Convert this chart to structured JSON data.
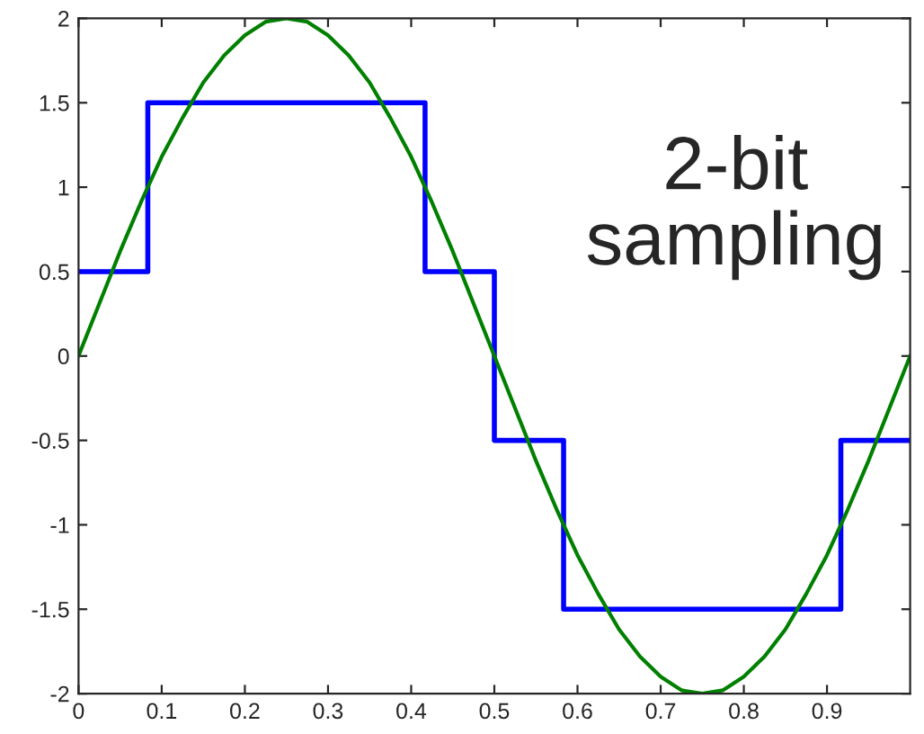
{
  "chart_data": {
    "type": "line",
    "xlim": [
      0,
      1
    ],
    "ylim": [
      -2,
      2
    ],
    "xticks": [
      0,
      0.1,
      0.2,
      0.3,
      0.4,
      0.5,
      0.6,
      0.7,
      0.8,
      0.9
    ],
    "yticks": [
      -2,
      -1.5,
      -1,
      -0.5,
      0,
      0.5,
      1,
      1.5,
      2
    ],
    "grid": false,
    "marker": "none",
    "line_style": "solid",
    "annotations": [
      "2-bit\nsampling"
    ],
    "series": [
      {
        "type": "step",
        "color": "#0000ff",
        "x": [
          0,
          0.0833,
          0.4167,
          0.5,
          0.5833,
          0.9167,
          1
        ],
        "values": [
          0.5,
          1.5,
          0.5,
          -0.5,
          -1.5,
          -0.5,
          -0.5
        ]
      },
      {
        "color": "#008000",
        "x": [
          0,
          0.025,
          0.05,
          0.075,
          0.1,
          0.125,
          0.15,
          0.175,
          0.2,
          0.225,
          0.25,
          0.275,
          0.3,
          0.325,
          0.35,
          0.375,
          0.4,
          0.425,
          0.45,
          0.475,
          0.5,
          0.525,
          0.55,
          0.575,
          0.6,
          0.625,
          0.65,
          0.675,
          0.7,
          0.725,
          0.75,
          0.775,
          0.8,
          0.825,
          0.85,
          0.875,
          0.9,
          0.925,
          0.95,
          0.975,
          1
        ],
        "values": [
          0,
          0.31,
          0.62,
          0.91,
          1.18,
          1.41,
          1.62,
          1.78,
          1.9,
          1.98,
          2,
          1.98,
          1.9,
          1.78,
          1.62,
          1.41,
          1.18,
          0.91,
          0.62,
          0.31,
          0,
          -0.31,
          -0.62,
          -0.91,
          -1.18,
          -1.41,
          -1.62,
          -1.78,
          -1.9,
          -1.98,
          -2,
          -1.98,
          -1.9,
          -1.78,
          -1.62,
          -1.41,
          -1.18,
          -0.91,
          -0.62,
          -0.31,
          0
        ]
      }
    ]
  }
}
